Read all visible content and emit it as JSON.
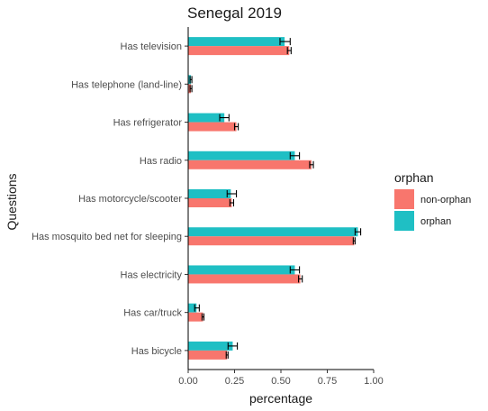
{
  "chart_data": {
    "type": "bar",
    "orientation": "horizontal",
    "title": "Senegal 2019",
    "xlabel": "percentage",
    "ylabel": "Questions",
    "xlim": [
      0,
      1.0
    ],
    "xticks": [
      "0.00",
      "0.25",
      "0.50",
      "0.75",
      "1.00"
    ],
    "xtick_values": [
      0,
      0.25,
      0.5,
      0.75,
      1.0
    ],
    "grid": false,
    "legend": {
      "title": "orphan",
      "position": "right",
      "entries": [
        {
          "label": "non-orphan",
          "color": "#F8766D"
        },
        {
          "label": "orphan",
          "color": "#1FBFC4"
        }
      ]
    },
    "categories": [
      "Has television",
      "Has telephone (land-line)",
      "Has refrigerator",
      "Has radio",
      "Has motorcycle/scooter",
      "Has mosquito bed net for sleeping",
      "Has electricity",
      "Has car/truck",
      "Has bicycle"
    ],
    "series": [
      {
        "name": "orphan",
        "color": "#1FBFC4",
        "values": [
          0.52,
          0.015,
          0.195,
          0.575,
          0.23,
          0.915,
          0.575,
          0.045,
          0.24
        ],
        "error_low": [
          0.495,
          0.01,
          0.17,
          0.55,
          0.21,
          0.9,
          0.55,
          0.035,
          0.215
        ],
        "error_high": [
          0.55,
          0.02,
          0.22,
          0.6,
          0.26,
          0.93,
          0.6,
          0.06,
          0.265
        ]
      },
      {
        "name": "non-orphan",
        "color": "#F8766D",
        "values": [
          0.545,
          0.015,
          0.26,
          0.665,
          0.235,
          0.895,
          0.605,
          0.08,
          0.21
        ],
        "error_low": [
          0.535,
          0.01,
          0.25,
          0.655,
          0.225,
          0.89,
          0.595,
          0.075,
          0.205
        ],
        "error_high": [
          0.555,
          0.02,
          0.27,
          0.675,
          0.245,
          0.9,
          0.615,
          0.085,
          0.215
        ]
      }
    ]
  }
}
